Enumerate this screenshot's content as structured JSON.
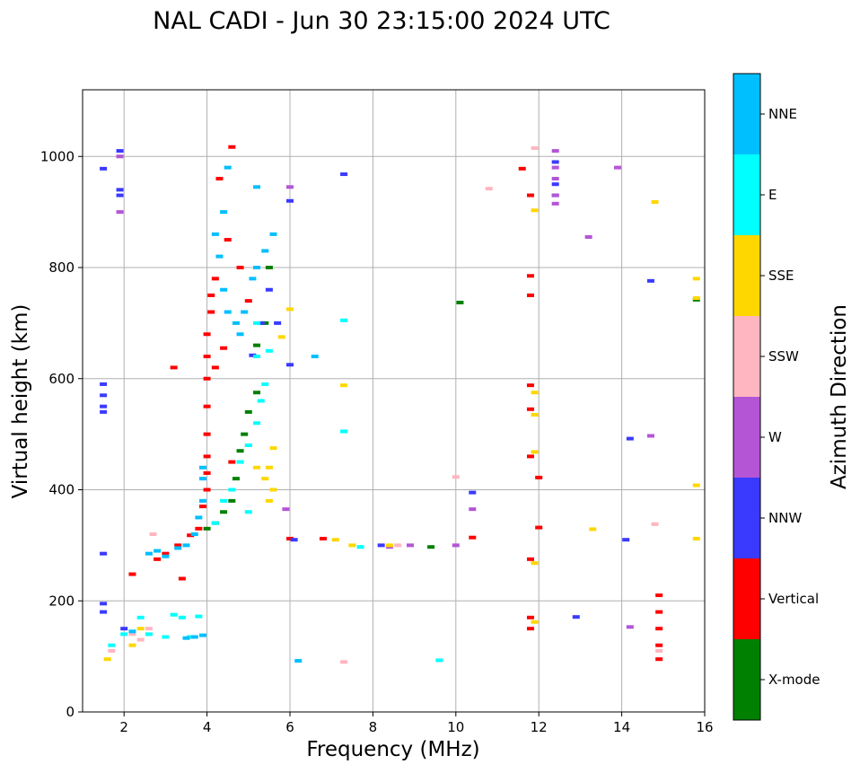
{
  "chart_data": {
    "type": "scatter",
    "title": "NAL CADI - Jun 30 23:15:00 2024 UTC",
    "xlabel": "Frequency (MHz)",
    "ylabel": "Virtual height (km)",
    "xlim": [
      1,
      16
    ],
    "ylim": [
      0,
      1120
    ],
    "x_ticks": [
      2,
      4,
      6,
      8,
      10,
      12,
      14,
      16
    ],
    "y_ticks": [
      0,
      200,
      400,
      600,
      800,
      1000
    ],
    "grid": true,
    "colorbar": {
      "label": "Azimuth Direction",
      "categories": [
        {
          "name": "X-mode",
          "color": "#008000"
        },
        {
          "name": "Vertical",
          "color": "#ff0000"
        },
        {
          "name": "NNW",
          "color": "#3a3aff"
        },
        {
          "name": "W",
          "color": "#b455d6"
        },
        {
          "name": "SSW",
          "color": "#ffb6c1"
        },
        {
          "name": "SSE",
          "color": "#ffd700"
        },
        {
          "name": "E",
          "color": "#00ffff"
        },
        {
          "name": "NNE",
          "color": "#00bfff"
        }
      ]
    },
    "series": [
      {
        "name": "X-mode",
        "points": [
          [
            4.0,
            330
          ],
          [
            4.2,
            340
          ],
          [
            4.4,
            360
          ],
          [
            4.6,
            380
          ],
          [
            4.7,
            420
          ],
          [
            4.8,
            470
          ],
          [
            4.9,
            500
          ],
          [
            5.0,
            540
          ],
          [
            5.2,
            575
          ],
          [
            5.2,
            660
          ],
          [
            5.4,
            700
          ],
          [
            5.5,
            800
          ],
          [
            9.4,
            297
          ],
          [
            10.1,
            737
          ],
          [
            15.8,
            742
          ]
        ]
      },
      {
        "name": "Vertical",
        "points": [
          [
            2.8,
            275
          ],
          [
            3.0,
            285
          ],
          [
            3.3,
            300
          ],
          [
            3.6,
            318
          ],
          [
            3.8,
            330
          ],
          [
            3.9,
            370
          ],
          [
            4.0,
            400
          ],
          [
            4.0,
            430
          ],
          [
            4.0,
            460
          ],
          [
            4.0,
            500
          ],
          [
            4.0,
            550
          ],
          [
            4.0,
            600
          ],
          [
            4.0,
            640
          ],
          [
            4.0,
            680
          ],
          [
            4.1,
            720
          ],
          [
            4.1,
            750
          ],
          [
            4.2,
            780
          ],
          [
            4.2,
            620
          ],
          [
            4.4,
            655
          ],
          [
            4.3,
            960
          ],
          [
            4.5,
            850
          ],
          [
            4.6,
            450
          ],
          [
            4.8,
            800
          ],
          [
            5.0,
            740
          ],
          [
            6.0,
            312
          ],
          [
            6.8,
            312
          ],
          [
            10.4,
            314
          ],
          [
            11.6,
            978
          ],
          [
            11.8,
            930
          ],
          [
            11.8,
            785
          ],
          [
            11.8,
            750
          ],
          [
            11.8,
            588
          ],
          [
            11.8,
            545
          ],
          [
            11.8,
            460
          ],
          [
            11.8,
            275
          ],
          [
            11.8,
            170
          ],
          [
            11.8,
            150
          ],
          [
            12.0,
            422
          ],
          [
            12.0,
            332
          ],
          [
            14.9,
            210
          ],
          [
            14.9,
            180
          ],
          [
            14.9,
            150
          ],
          [
            14.9,
            120
          ],
          [
            14.9,
            95
          ],
          [
            4.6,
            1017
          ],
          [
            3.2,
            620
          ],
          [
            2.2,
            248
          ],
          [
            3.4,
            240
          ]
        ]
      },
      {
        "name": "NNW",
        "points": [
          [
            1.5,
            978
          ],
          [
            1.5,
            590
          ],
          [
            1.5,
            570
          ],
          [
            1.5,
            550
          ],
          [
            1.5,
            540
          ],
          [
            1.5,
            285
          ],
          [
            1.5,
            195
          ],
          [
            1.5,
            180
          ],
          [
            1.9,
            1010
          ],
          [
            1.9,
            940
          ],
          [
            1.9,
            930
          ],
          [
            2.0,
            150
          ],
          [
            5.1,
            642
          ],
          [
            5.3,
            700
          ],
          [
            5.5,
            760
          ],
          [
            5.7,
            700
          ],
          [
            6.0,
            625
          ],
          [
            6.1,
            310
          ],
          [
            7.3,
            968
          ],
          [
            8.2,
            300
          ],
          [
            10.4,
            395
          ],
          [
            12.4,
            990
          ],
          [
            12.4,
            950
          ],
          [
            12.4,
            930
          ],
          [
            12.9,
            171
          ],
          [
            14.1,
            310
          ],
          [
            14.2,
            492
          ],
          [
            14.7,
            776
          ],
          [
            6.0,
            920
          ]
        ]
      },
      {
        "name": "W",
        "points": [
          [
            1.9,
            1000
          ],
          [
            1.9,
            900
          ],
          [
            5.9,
            365
          ],
          [
            6.0,
            945
          ],
          [
            8.4,
            297
          ],
          [
            8.9,
            300
          ],
          [
            10.0,
            300
          ],
          [
            10.4,
            365
          ],
          [
            12.4,
            1010
          ],
          [
            12.4,
            980
          ],
          [
            12.4,
            960
          ],
          [
            12.4,
            930
          ],
          [
            12.4,
            915
          ],
          [
            13.2,
            855
          ],
          [
            13.9,
            980
          ],
          [
            14.2,
            153
          ],
          [
            14.7,
            497
          ]
        ]
      },
      {
        "name": "SSW",
        "points": [
          [
            1.7,
            110
          ],
          [
            2.2,
            140
          ],
          [
            2.4,
            130
          ],
          [
            2.6,
            150
          ],
          [
            2.7,
            320
          ],
          [
            8.6,
            300
          ],
          [
            10.0,
            423
          ],
          [
            10.8,
            942
          ],
          [
            11.9,
            1015
          ],
          [
            14.8,
            338
          ],
          [
            14.9,
            110
          ],
          [
            7.3,
            90
          ]
        ]
      },
      {
        "name": "SSE",
        "points": [
          [
            1.6,
            95
          ],
          [
            2.2,
            120
          ],
          [
            2.4,
            150
          ],
          [
            5.0,
            480
          ],
          [
            5.2,
            440
          ],
          [
            5.4,
            420
          ],
          [
            5.5,
            440
          ],
          [
            5.6,
            475
          ],
          [
            5.6,
            400
          ],
          [
            5.5,
            380
          ],
          [
            5.8,
            675
          ],
          [
            6.0,
            725
          ],
          [
            7.1,
            310
          ],
          [
            7.3,
            588
          ],
          [
            7.5,
            300
          ],
          [
            8.4,
            300
          ],
          [
            11.9,
            903
          ],
          [
            11.9,
            575
          ],
          [
            11.9,
            535
          ],
          [
            11.9,
            468
          ],
          [
            11.9,
            268
          ],
          [
            11.9,
            162
          ],
          [
            13.3,
            329
          ],
          [
            14.8,
            918
          ],
          [
            15.8,
            780
          ],
          [
            15.8,
            745
          ],
          [
            15.8,
            408
          ],
          [
            15.8,
            312
          ]
        ]
      },
      {
        "name": "E",
        "points": [
          [
            1.7,
            120
          ],
          [
            2.0,
            140
          ],
          [
            2.4,
            170
          ],
          [
            2.6,
            140
          ],
          [
            3.2,
            175
          ],
          [
            3.4,
            170
          ],
          [
            3.8,
            172
          ],
          [
            3.0,
            135
          ],
          [
            3.6,
            135
          ],
          [
            4.2,
            340
          ],
          [
            4.4,
            380
          ],
          [
            4.6,
            400
          ],
          [
            4.8,
            450
          ],
          [
            5.0,
            480
          ],
          [
            5.2,
            520
          ],
          [
            5.3,
            560
          ],
          [
            5.4,
            590
          ],
          [
            5.2,
            640
          ],
          [
            5.2,
            700
          ],
          [
            5.0,
            360
          ],
          [
            5.5,
            650
          ],
          [
            7.3,
            705
          ],
          [
            7.3,
            505
          ],
          [
            7.7,
            297
          ],
          [
            9.6,
            93
          ]
        ]
      },
      {
        "name": "NNE",
        "points": [
          [
            2.6,
            285
          ],
          [
            2.8,
            290
          ],
          [
            3.0,
            280
          ],
          [
            3.3,
            295
          ],
          [
            3.5,
            300
          ],
          [
            3.7,
            320
          ],
          [
            3.8,
            350
          ],
          [
            3.9,
            380
          ],
          [
            3.9,
            420
          ],
          [
            3.9,
            440
          ],
          [
            4.2,
            860
          ],
          [
            4.3,
            820
          ],
          [
            4.4,
            760
          ],
          [
            4.5,
            720
          ],
          [
            4.7,
            700
          ],
          [
            4.8,
            680
          ],
          [
            4.9,
            720
          ],
          [
            5.1,
            780
          ],
          [
            5.2,
            800
          ],
          [
            5.4,
            830
          ],
          [
            5.6,
            860
          ],
          [
            4.5,
            980
          ],
          [
            4.4,
            900
          ],
          [
            5.2,
            945
          ],
          [
            6.2,
            92
          ],
          [
            6.6,
            640
          ],
          [
            3.5,
            133
          ],
          [
            3.7,
            135
          ],
          [
            3.9,
            138
          ],
          [
            2.2,
            145
          ]
        ]
      }
    ]
  }
}
